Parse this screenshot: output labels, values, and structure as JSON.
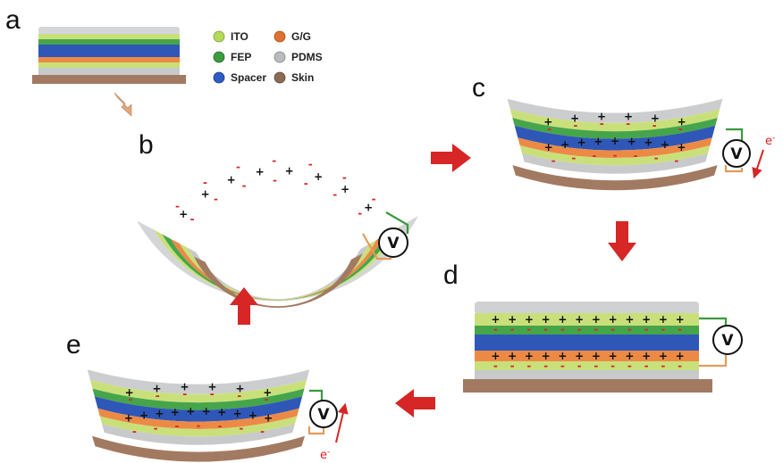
{
  "panels": {
    "a": "a",
    "b": "b",
    "c": "c",
    "d": "d",
    "e": "e"
  },
  "legend": [
    {
      "label": "ITO",
      "color": "#b3d85a"
    },
    {
      "label": "G/G",
      "color": "#e0702f"
    },
    {
      "label": "FEP",
      "color": "#3c9a3f"
    },
    {
      "label": "PDMS",
      "color": "#b9bcbf"
    },
    {
      "label": "Spacer",
      "color": "#2e5bc4"
    },
    {
      "label": "Skin",
      "color": "#8a6a55"
    }
  ],
  "voltmeter_label": "V",
  "electron": {
    "symbol": "e",
    "charge": "-"
  },
  "charges": {
    "positive": "+",
    "negative": "-"
  },
  "colors": {
    "ito": "#c9e07a",
    "fep": "#46a54a",
    "spacer": "#2f57b8",
    "gg": "#ec8a45",
    "pdms": "#c7c9cb",
    "skin": "#a27a62",
    "cover": "#c8cacc",
    "arrow_red": "#d62626",
    "arrow_tan": "#e3a67c",
    "wire_green": "#3a9a3e",
    "wire_orange": "#e49a5a"
  }
}
